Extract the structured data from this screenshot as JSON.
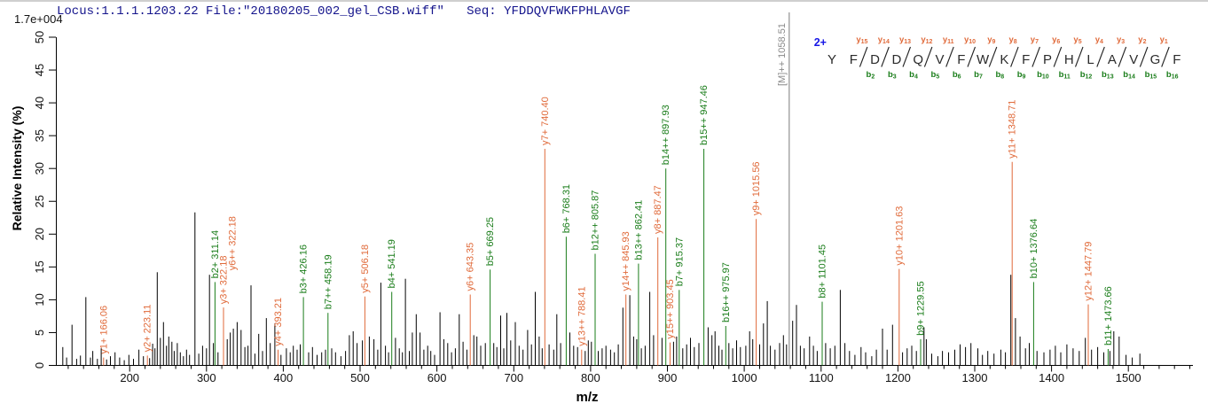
{
  "header": {
    "locus_file": "Locus:1.1.1.1203.22 File:\"20180205_002_gel_CSB.wiff\"",
    "seq_label": "Seq:",
    "sequence": "YFDDQVFWKFPHLAVGF"
  },
  "scale_label": "1.7e+004",
  "colors": {
    "y_ion": "#e06a3a",
    "b_ion": "#1a7d1a",
    "precursor_line": "#999999",
    "precursor_label": "#8a8a8a",
    "peak": "#000000",
    "header_text": "#14148c",
    "charge_label": "#1616e6",
    "axis": "#000000",
    "sequence_text": "#2b2b2b"
  },
  "axes": {
    "x": {
      "label": "m/z",
      "min": 104,
      "max": 1584,
      "minor_step": 20,
      "major_ticks": [
        200,
        300,
        400,
        500,
        600,
        700,
        800,
        900,
        1000,
        1100,
        1200,
        1300,
        1400,
        1500
      ]
    },
    "y": {
      "label": "Relative  Intensity (%)",
      "min": 0,
      "max": 50,
      "ticks": [
        0,
        5,
        10,
        15,
        20,
        25,
        30,
        35,
        40,
        45,
        50
      ]
    }
  },
  "ladder": {
    "charge": "2+",
    "sequence": "YFDDQVFWKFPHLAVGF",
    "y_ions": [
      "y15",
      "y14",
      "y13",
      "y12",
      "y11",
      "y10",
      "y9",
      "y8",
      "y7",
      "y6",
      "y5",
      "y4",
      "y3",
      "y2",
      "y1"
    ],
    "b_ions": [
      "b2",
      "b3",
      "b4",
      "b5",
      "b6",
      "b7",
      "b8",
      "b9",
      "b10",
      "b11",
      "b12",
      "b13",
      "b14",
      "b15",
      "b16"
    ]
  },
  "chart_data": {
    "type": "ms2-spectrum",
    "xlabel": "m/z",
    "ylabel": "Relative  Intensity (%)",
    "xlim": [
      104,
      1584
    ],
    "ylim": [
      0,
      50
    ],
    "intensity_scale": "1.7e+004",
    "precursor": {
      "label": "[M]++ 1058.51",
      "ion": "[M]++",
      "mz": 1058.51
    },
    "labeled_peaks": [
      {
        "label": "y1+ 166.06",
        "ion": "y1+",
        "mz": 166.06,
        "intensity": 1.2,
        "series": "y"
      },
      {
        "label": "y2+ 223.11",
        "ion": "y2+",
        "mz": 223.11,
        "intensity": 1.5,
        "series": "y"
      },
      {
        "label": "b2+ 311.14",
        "ion": "b2+",
        "mz": 311.14,
        "intensity": 12.7,
        "series": "b"
      },
      {
        "label": "y3+ 322.18",
        "ion": "y3+",
        "mz": 322.18,
        "intensity": 8.8,
        "series": "y"
      },
      {
        "label": "y6++ 322.18",
        "ion": "y6++",
        "mz": 322.18,
        "intensity": 8.8,
        "series": "y",
        "label_dx": 10,
        "label_dy": -38
      },
      {
        "label": "y4+ 393.21",
        "ion": "y4+",
        "mz": 393.21,
        "intensity": 2.4,
        "series": "y"
      },
      {
        "label": "b3+ 426.16",
        "ion": "b3+",
        "mz": 426.16,
        "intensity": 10.4,
        "series": "b"
      },
      {
        "label": "b7++ 458.19",
        "ion": "b7++",
        "mz": 458.19,
        "intensity": 8.0,
        "series": "b"
      },
      {
        "label": "y5+ 506.18",
        "ion": "y5+",
        "mz": 506.18,
        "intensity": 10.5,
        "series": "y"
      },
      {
        "label": "b4+ 541.19",
        "ion": "b4+",
        "mz": 541.19,
        "intensity": 11.2,
        "series": "b"
      },
      {
        "label": "y6+ 643.35",
        "ion": "y6+",
        "mz": 643.35,
        "intensity": 10.8,
        "series": "y"
      },
      {
        "label": "b5+ 669.25",
        "ion": "b5+",
        "mz": 669.25,
        "intensity": 14.6,
        "series": "b"
      },
      {
        "label": "y7+ 740.40",
        "ion": "y7+",
        "mz": 740.4,
        "intensity": 33.0,
        "series": "y"
      },
      {
        "label": "b6+ 768.31",
        "ion": "b6+",
        "mz": 768.31,
        "intensity": 19.6,
        "series": "b"
      },
      {
        "label": "y13++ 788.41",
        "ion": "y13++",
        "mz": 788.41,
        "intensity": 2.4,
        "series": "y"
      },
      {
        "label": "b12++ 805.87",
        "ion": "b12++",
        "mz": 805.87,
        "intensity": 17.0,
        "series": "b"
      },
      {
        "label": "y14++ 845.93",
        "ion": "y14++",
        "mz": 845.93,
        "intensity": 10.8,
        "series": "y"
      },
      {
        "label": "b13++ 862.41",
        "ion": "b13++",
        "mz": 862.41,
        "intensity": 15.5,
        "series": "b"
      },
      {
        "label": "y8+ 887.47",
        "ion": "y8+",
        "mz": 887.47,
        "intensity": 19.5,
        "series": "y"
      },
      {
        "label": "b14++ 897.93",
        "ion": "b14++",
        "mz": 897.93,
        "intensity": 30.0,
        "series": "b"
      },
      {
        "label": "y15++ 903.45",
        "ion": "y15++",
        "mz": 903.45,
        "intensity": 3.5,
        "series": "y"
      },
      {
        "label": "b7+ 915.37",
        "ion": "b7+",
        "mz": 915.37,
        "intensity": 11.5,
        "series": "b"
      },
      {
        "label": "b15++ 947.46",
        "ion": "b15++",
        "mz": 947.46,
        "intensity": 33.0,
        "series": "b"
      },
      {
        "label": "b16++ 975.97",
        "ion": "b16++",
        "mz": 975.97,
        "intensity": 6.0,
        "series": "b"
      },
      {
        "label": "y9+ 1015.56",
        "ion": "y9+",
        "mz": 1015.56,
        "intensity": 22.3,
        "series": "y"
      },
      {
        "label": "b8+ 1101.45",
        "ion": "b8+",
        "mz": 1101.45,
        "intensity": 9.7,
        "series": "b"
      },
      {
        "label": "y10+ 1201.63",
        "ion": "y10+",
        "mz": 1201.63,
        "intensity": 14.7,
        "series": "y"
      },
      {
        "label": "b9+ 1229.55",
        "ion": "b9+",
        "mz": 1229.55,
        "intensity": 4.0,
        "series": "b"
      },
      {
        "label": "y11+ 1348.71",
        "ion": "y11+",
        "mz": 1348.71,
        "intensity": 31.0,
        "series": "y"
      },
      {
        "label": "b10+ 1376.64",
        "ion": "b10+",
        "mz": 1376.64,
        "intensity": 12.7,
        "series": "b"
      },
      {
        "label": "y12+ 1447.79",
        "ion": "y12+",
        "mz": 1447.79,
        "intensity": 9.3,
        "series": "y"
      },
      {
        "label": "b11+ 1473.66",
        "ion": "b11+",
        "mz": 1473.66,
        "intensity": 2.5,
        "series": "b"
      }
    ],
    "background_peaks": [
      [
        113,
        2.8
      ],
      [
        118,
        1.2
      ],
      [
        125,
        6.2
      ],
      [
        131,
        1.0
      ],
      [
        136,
        1.5
      ],
      [
        143,
        10.4
      ],
      [
        149,
        1.2
      ],
      [
        152,
        2.2
      ],
      [
        158,
        1.0
      ],
      [
        163,
        2.6
      ],
      [
        170,
        0.9
      ],
      [
        175,
        1.4
      ],
      [
        181,
        2.0
      ],
      [
        187,
        1.2
      ],
      [
        193,
        0.8
      ],
      [
        199,
        1.6
      ],
      [
        205,
        1.0
      ],
      [
        212,
        2.4
      ],
      [
        218,
        1.4
      ],
      [
        226,
        1.1
      ],
      [
        230,
        3.3
      ],
      [
        233,
        2.6
      ],
      [
        236,
        14.2
      ],
      [
        240,
        4.2
      ],
      [
        244,
        6.6
      ],
      [
        248,
        3.0
      ],
      [
        251,
        4.4
      ],
      [
        255,
        3.6
      ],
      [
        258,
        2.2
      ],
      [
        262,
        3.4
      ],
      [
        266,
        2.0
      ],
      [
        270,
        1.4
      ],
      [
        274,
        2.4
      ],
      [
        278,
        1.6
      ],
      [
        285,
        23.3
      ],
      [
        290,
        1.8
      ],
      [
        295,
        3.0
      ],
      [
        300,
        2.6
      ],
      [
        304,
        13.8
      ],
      [
        309,
        3.4
      ],
      [
        315,
        2.0
      ],
      [
        327,
        4.0
      ],
      [
        331,
        5.0
      ],
      [
        335,
        5.6
      ],
      [
        340,
        6.6
      ],
      [
        345,
        5.4
      ],
      [
        350,
        2.8
      ],
      [
        354,
        3.0
      ],
      [
        358,
        12.2
      ],
      [
        363,
        1.8
      ],
      [
        368,
        4.8
      ],
      [
        373,
        2.2
      ],
      [
        378,
        7.2
      ],
      [
        383,
        3.4
      ],
      [
        389,
        6.4
      ],
      [
        397,
        1.6
      ],
      [
        404,
        2.6
      ],
      [
        409,
        2.0
      ],
      [
        413,
        3.0
      ],
      [
        418,
        2.4
      ],
      [
        422,
        3.2
      ],
      [
        433,
        2.0
      ],
      [
        438,
        2.8
      ],
      [
        444,
        1.6
      ],
      [
        450,
        2.0
      ],
      [
        455,
        2.4
      ],
      [
        463,
        2.6
      ],
      [
        468,
        2.0
      ],
      [
        475,
        1.4
      ],
      [
        481,
        2.2
      ],
      [
        486,
        4.6
      ],
      [
        491,
        5.2
      ],
      [
        496,
        3.4
      ],
      [
        503,
        3.8
      ],
      [
        512,
        4.4
      ],
      [
        518,
        4.0
      ],
      [
        523,
        2.4
      ],
      [
        527,
        12.6
      ],
      [
        533,
        3.0
      ],
      [
        537,
        2.0
      ],
      [
        546,
        4.2
      ],
      [
        551,
        2.6
      ],
      [
        555,
        2.0
      ],
      [
        559,
        13.2
      ],
      [
        564,
        2.2
      ],
      [
        568,
        5.0
      ],
      [
        573,
        7.8
      ],
      [
        578,
        5.0
      ],
      [
        583,
        2.4
      ],
      [
        588,
        3.0
      ],
      [
        592,
        2.2
      ],
      [
        597,
        1.6
      ],
      [
        604,
        8.1
      ],
      [
        609,
        4.0
      ],
      [
        614,
        3.4
      ],
      [
        619,
        2.0
      ],
      [
        624,
        2.6
      ],
      [
        629,
        7.8
      ],
      [
        634,
        3.6
      ],
      [
        639,
        2.4
      ],
      [
        648,
        4.6
      ],
      [
        652,
        4.4
      ],
      [
        657,
        3.0
      ],
      [
        663,
        3.4
      ],
      [
        674,
        3.4
      ],
      [
        678,
        2.8
      ],
      [
        683,
        7.6
      ],
      [
        687,
        2.6
      ],
      [
        691,
        8.0
      ],
      [
        696,
        3.8
      ],
      [
        702,
        6.6
      ],
      [
        707,
        3.0
      ],
      [
        712,
        2.4
      ],
      [
        718,
        5.4
      ],
      [
        723,
        3.2
      ],
      [
        728,
        11.2
      ],
      [
        733,
        4.4
      ],
      [
        737,
        2.6
      ],
      [
        746,
        3.2
      ],
      [
        752,
        2.4
      ],
      [
        756,
        7.8
      ],
      [
        761,
        3.4
      ],
      [
        773,
        5.0
      ],
      [
        778,
        3.0
      ],
      [
        783,
        2.8
      ],
      [
        793,
        2.2
      ],
      [
        797,
        3.8
      ],
      [
        801,
        3.6
      ],
      [
        810,
        2.2
      ],
      [
        815,
        2.6
      ],
      [
        820,
        3.0
      ],
      [
        826,
        2.4
      ],
      [
        831,
        2.0
      ],
      [
        836,
        3.2
      ],
      [
        842,
        8.8
      ],
      [
        851,
        10.7
      ],
      [
        856,
        4.4
      ],
      [
        860,
        4.0
      ],
      [
        866,
        2.6
      ],
      [
        871,
        3.0
      ],
      [
        877,
        11.2
      ],
      [
        882,
        4.6
      ],
      [
        893,
        4.2
      ],
      [
        908,
        3.6
      ],
      [
        912,
        4.4
      ],
      [
        920,
        2.6
      ],
      [
        925,
        3.2
      ],
      [
        930,
        4.2
      ],
      [
        935,
        2.8
      ],
      [
        941,
        3.4
      ],
      [
        953,
        5.8
      ],
      [
        958,
        4.6
      ],
      [
        962,
        5.2
      ],
      [
        967,
        3.0
      ],
      [
        971,
        2.4
      ],
      [
        980,
        3.4
      ],
      [
        985,
        2.6
      ],
      [
        990,
        3.8
      ],
      [
        995,
        2.8
      ],
      [
        1002,
        3.0
      ],
      [
        1007,
        5.2
      ],
      [
        1011,
        4.0
      ],
      [
        1020,
        3.2
      ],
      [
        1025,
        6.4
      ],
      [
        1030,
        9.8
      ],
      [
        1034,
        3.0
      ],
      [
        1040,
        2.4
      ],
      [
        1046,
        3.4
      ],
      [
        1051,
        4.6
      ],
      [
        1055,
        3.2
      ],
      [
        1063,
        6.8
      ],
      [
        1068,
        9.2
      ],
      [
        1073,
        3.0
      ],
      [
        1078,
        2.6
      ],
      [
        1085,
        4.4
      ],
      [
        1090,
        3.0
      ],
      [
        1095,
        2.2
      ],
      [
        1106,
        3.4
      ],
      [
        1112,
        2.6
      ],
      [
        1118,
        3.0
      ],
      [
        1125,
        11.5
      ],
      [
        1131,
        3.4
      ],
      [
        1137,
        2.2
      ],
      [
        1144,
        1.6
      ],
      [
        1152,
        2.8
      ],
      [
        1158,
        2.0
      ],
      [
        1166,
        1.4
      ],
      [
        1172,
        2.4
      ],
      [
        1180,
        5.6
      ],
      [
        1186,
        2.4
      ],
      [
        1193,
        6.2
      ],
      [
        1206,
        2.0
      ],
      [
        1212,
        2.6
      ],
      [
        1218,
        3.0
      ],
      [
        1224,
        2.2
      ],
      [
        1234,
        5.8
      ],
      [
        1237,
        4.0
      ],
      [
        1244,
        1.8
      ],
      [
        1252,
        1.4
      ],
      [
        1258,
        2.2
      ],
      [
        1266,
        2.0
      ],
      [
        1274,
        2.4
      ],
      [
        1281,
        3.2
      ],
      [
        1288,
        2.8
      ],
      [
        1295,
        3.4
      ],
      [
        1304,
        2.6
      ],
      [
        1310,
        1.6
      ],
      [
        1317,
        2.2
      ],
      [
        1325,
        1.8
      ],
      [
        1334,
        2.4
      ],
      [
        1340,
        2.0
      ],
      [
        1347,
        13.8
      ],
      [
        1353,
        7.2
      ],
      [
        1359,
        4.4
      ],
      [
        1366,
        2.6
      ],
      [
        1371,
        3.4
      ],
      [
        1381,
        2.2
      ],
      [
        1390,
        2.0
      ],
      [
        1398,
        2.4
      ],
      [
        1405,
        3.0
      ],
      [
        1412,
        2.0
      ],
      [
        1420,
        3.2
      ],
      [
        1428,
        2.6
      ],
      [
        1436,
        2.2
      ],
      [
        1444,
        4.2
      ],
      [
        1452,
        2.4
      ],
      [
        1460,
        2.8
      ],
      [
        1468,
        2.0
      ],
      [
        1476,
        2.2
      ],
      [
        1481,
        5.2
      ],
      [
        1488,
        4.4
      ],
      [
        1497,
        1.6
      ],
      [
        1505,
        1.2
      ],
      [
        1515,
        1.8
      ]
    ]
  }
}
